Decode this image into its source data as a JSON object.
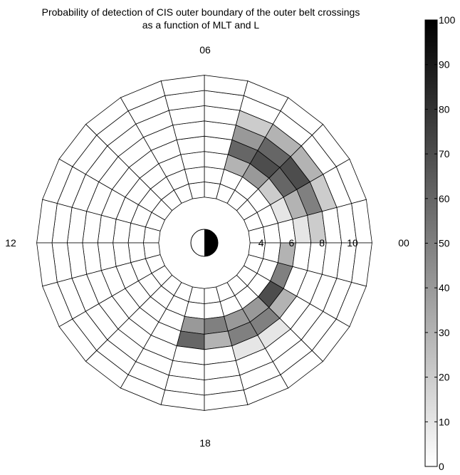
{
  "chart_data": {
    "type": "heatmap",
    "title": "Probability of detection of CIS outer boundary of the outer belt crossings",
    "subtitle": "as a function of MLT and L",
    "mlt_labels": [
      "06",
      "12",
      "18",
      "00"
    ],
    "l_tick_labels": [
      "4",
      "6",
      "8",
      "10"
    ],
    "l_ticks": [
      4,
      6,
      8,
      10
    ],
    "l_bins": [
      3,
      4,
      5,
      6,
      7,
      8,
      9,
      10,
      11
    ],
    "mlt_bin_width_hours": 1,
    "colorbar": {
      "min": 0,
      "max": 100,
      "tick_labels": [
        "0",
        "10",
        "20",
        "30",
        "40",
        "50",
        "60",
        "70",
        "80",
        "90",
        "100"
      ],
      "ticks": [
        0,
        10,
        20,
        30,
        40,
        50,
        60,
        70,
        80,
        90,
        100
      ],
      "colormap": "gray-reversed",
      "low_color": "#ffffff",
      "high_color": "#000000"
    },
    "probability_percent": [
      [
        0,
        0,
        0,
        10,
        20,
        0,
        0,
        0
      ],
      [
        0,
        0,
        10,
        30,
        50,
        20,
        0,
        0
      ],
      [
        0,
        0,
        20,
        60,
        70,
        30,
        0,
        0
      ],
      [
        0,
        0,
        40,
        70,
        60,
        30,
        0,
        0
      ],
      [
        0,
        0,
        30,
        60,
        40,
        20,
        0,
        0
      ],
      [
        0,
        0,
        0,
        0,
        0,
        0,
        0,
        0
      ],
      [
        0,
        0,
        0,
        0,
        0,
        0,
        0,
        0
      ],
      [
        0,
        0,
        0,
        0,
        0,
        0,
        0,
        0
      ],
      [
        0,
        0,
        0,
        0,
        0,
        0,
        0,
        0
      ],
      [
        0,
        0,
        0,
        0,
        0,
        0,
        0,
        0
      ],
      [
        0,
        0,
        0,
        0,
        0,
        0,
        0,
        0
      ],
      [
        0,
        0,
        0,
        0,
        0,
        0,
        0,
        0
      ],
      [
        0,
        0,
        0,
        0,
        0,
        0,
        0,
        0
      ],
      [
        0,
        0,
        0,
        0,
        0,
        0,
        0,
        0
      ],
      [
        0,
        0,
        0,
        0,
        0,
        0,
        0,
        0
      ],
      [
        0,
        0,
        0,
        0,
        0,
        0,
        0,
        0
      ],
      [
        0,
        0,
        0,
        0,
        0,
        0,
        0,
        0
      ],
      [
        0,
        0,
        40,
        60,
        0,
        0,
        0,
        0
      ],
      [
        0,
        0,
        50,
        30,
        0,
        0,
        0,
        0
      ],
      [
        0,
        0,
        40,
        50,
        10,
        0,
        0,
        0
      ],
      [
        0,
        0,
        40,
        50,
        10,
        0,
        0,
        0
      ],
      [
        0,
        0,
        70,
        30,
        0,
        0,
        0,
        0
      ],
      [
        0,
        0,
        50,
        0,
        0,
        0,
        0,
        0
      ],
      [
        0,
        0,
        30,
        0,
        0,
        0,
        0,
        0
      ]
    ]
  }
}
